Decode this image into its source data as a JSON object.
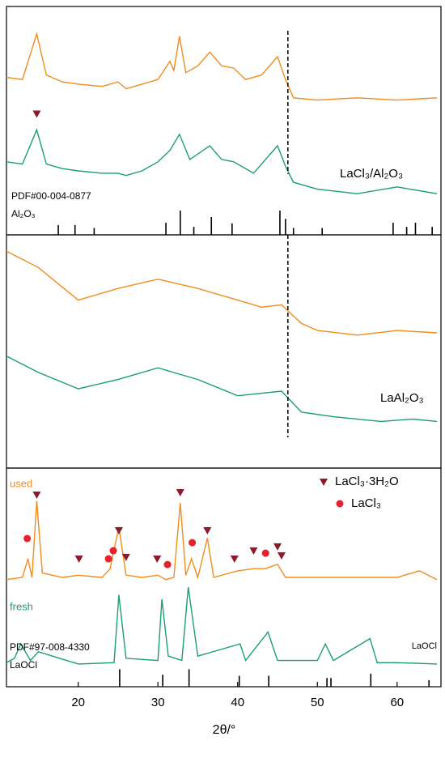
{
  "chart_data": [
    {
      "type": "line",
      "xlim": [
        11,
        65.5
      ],
      "ylim": [
        0,
        100
      ],
      "reference_line_x": 46.3,
      "series": [
        {
          "color": "#f28c1c",
          "x": [
            11,
            13,
            14.8,
            16,
            18,
            20,
            23,
            25,
            26,
            28,
            30,
            31.5,
            32,
            32.7,
            33.5,
            35,
            36.5,
            38,
            39.5,
            41,
            43,
            45,
            46,
            47,
            50,
            55,
            60,
            65
          ],
          "values": [
            69,
            68,
            88,
            70,
            67,
            66,
            65,
            67,
            64,
            66,
            68,
            76,
            72,
            87,
            71,
            74,
            80,
            74,
            73,
            68,
            70,
            78,
            68,
            60,
            59,
            60,
            59,
            60
          ]
        },
        {
          "color": "#1a9e77",
          "x": [
            11,
            13,
            14.8,
            16,
            18,
            20,
            23,
            25,
            26,
            28,
            30,
            31.5,
            32.7,
            34,
            36.5,
            38,
            39.5,
            42,
            45,
            46,
            47,
            50,
            55,
            60,
            65
          ],
          "values": [
            32,
            31,
            46,
            31,
            29,
            28,
            27,
            27,
            26,
            28,
            32,
            37,
            44,
            33,
            39,
            33,
            32,
            27,
            39,
            30,
            23,
            20,
            18,
            21,
            18
          ]
        }
      ],
      "references": [
        {
          "label": "PDF#00-004-0877",
          "phase": "Al₂O₃",
          "color": "#000000",
          "x": [
            17.5,
            19.6,
            22,
            31,
            32.8,
            34.5,
            36.7,
            39.3,
            45.3,
            46,
            47,
            50.6,
            59.5,
            61.2,
            62.3,
            64.4
          ],
          "values": [
            4.3,
            4.3,
            3,
            5.3,
            10.6,
            3.5,
            7.8,
            5,
            10.6,
            7,
            3,
            3,
            5.3,
            3.5,
            5.3,
            3.5
          ]
        }
      ],
      "markers": [
        {
          "shape": "triangle",
          "color": "#8b1a2b",
          "x": [
            14.8
          ],
          "values": [
            53
          ]
        }
      ],
      "annotations": [
        {
          "text": "LaCl₃/Al₂O₃",
          "color": "#000000"
        },
        {
          "text": "PDF#00-004-0877",
          "color": "#000000"
        },
        {
          "text": "Al₂O₃",
          "color": "#000000"
        }
      ]
    },
    {
      "type": "line",
      "xlim": [
        11,
        65.5
      ],
      "ylim": [
        0,
        100
      ],
      "reference_line_x": 46.3,
      "series": [
        {
          "color": "#f28c1c",
          "x": [
            11,
            15,
            20,
            25,
            30,
            35,
            40,
            43,
            45.5,
            48,
            50,
            55,
            60,
            65
          ],
          "values": [
            93,
            86,
            72,
            77,
            81,
            77,
            72,
            69,
            70,
            62,
            59,
            57,
            59,
            58
          ]
        },
        {
          "color": "#1a9e77",
          "x": [
            11,
            15,
            20,
            25,
            30,
            35,
            40,
            45.5,
            48,
            52,
            58,
            62,
            65
          ],
          "values": [
            48,
            41,
            34,
            38,
            43,
            38,
            31,
            33,
            24,
            22,
            20,
            21,
            20
          ]
        }
      ],
      "annotations": [
        {
          "text": "LaAl₂O₃",
          "color": "#000000"
        }
      ]
    },
    {
      "type": "line",
      "xlim": [
        11,
        65.5
      ],
      "ylim": [
        0,
        100
      ],
      "xticks": [
        20,
        30,
        40,
        50,
        60
      ],
      "xlabel": "2θ/°",
      "series": [
        {
          "color": "#f28c1c",
          "x": [
            11,
            13,
            13.7,
            14.2,
            14.8,
            15.5,
            18,
            20,
            23,
            24,
            25.1,
            26,
            28,
            30,
            31,
            32,
            32.8,
            33.5,
            34.2,
            35,
            36.2,
            37,
            40,
            42,
            43.5,
            45,
            46,
            48,
            56,
            60,
            62.8,
            65
          ],
          "values": [
            49,
            50,
            58.5,
            50,
            85,
            52,
            50,
            51,
            50,
            54,
            73,
            51,
            50,
            51,
            49,
            50,
            84,
            51,
            58.5,
            50,
            68,
            50,
            53,
            54,
            54,
            56,
            50,
            50,
            50,
            50,
            53,
            49
          ]
        },
        {
          "color": "#1a9e77",
          "x": [
            11,
            12,
            12.8,
            14,
            15,
            20,
            24.5,
            25.1,
            26,
            30,
            30.5,
            31.3,
            33,
            33.8,
            35,
            40.3,
            41,
            43.8,
            45,
            50,
            51,
            52,
            56.6,
            57.5,
            60,
            65
          ],
          "values": [
            11,
            13,
            19.6,
            12,
            16,
            10.4,
            11,
            42,
            13,
            12,
            40,
            14,
            12,
            45.5,
            14,
            19.6,
            12,
            25,
            12,
            12,
            19.6,
            12,
            22,
            11,
            11,
            10.4
          ]
        }
      ],
      "references": [
        {
          "label": "PDF#97-008-4330",
          "phase": "LaOCl",
          "color": "#000000",
          "x": [
            25.2,
            30.6,
            33.9,
            40.2,
            43.9,
            51.2,
            51.7,
            56.7,
            64
          ],
          "values": [
            8,
            5.5,
            8,
            5,
            5,
            4,
            4,
            6,
            3
          ]
        }
      ],
      "markers": [
        {
          "name": "LaCl₃·3H₂O",
          "shape": "triangle",
          "color": "#8b1a2b",
          "x": [
            14.8,
            20.1,
            25.1,
            26,
            29.9,
            32.8,
            36.2,
            39.6,
            42,
            45,
            45.5
          ],
          "values": [
            87.8,
            58.5,
            71.5,
            59.3,
            58.5,
            88.9,
            71.5,
            58.5,
            62.2,
            64.1,
            60
          ]
        },
        {
          "name": "LaCl₃",
          "shape": "circle",
          "color": "#e8202a",
          "x": [
            13.6,
            23.8,
            24.4,
            31.2,
            34.3,
            43.5
          ],
          "values": [
            67.8,
            58.5,
            62.2,
            55.9,
            65.9,
            61.1
          ]
        }
      ],
      "annotations": [
        {
          "text": "used",
          "color": "#f28c1c"
        },
        {
          "text": "fresh",
          "color": "#1a9e77"
        },
        {
          "text": "LaOCl",
          "color": "#000000"
        },
        {
          "text": "PDF#97-008-4330",
          "color": "#000000"
        },
        {
          "text": "LaOCl",
          "color": "#000000"
        }
      ]
    }
  ]
}
